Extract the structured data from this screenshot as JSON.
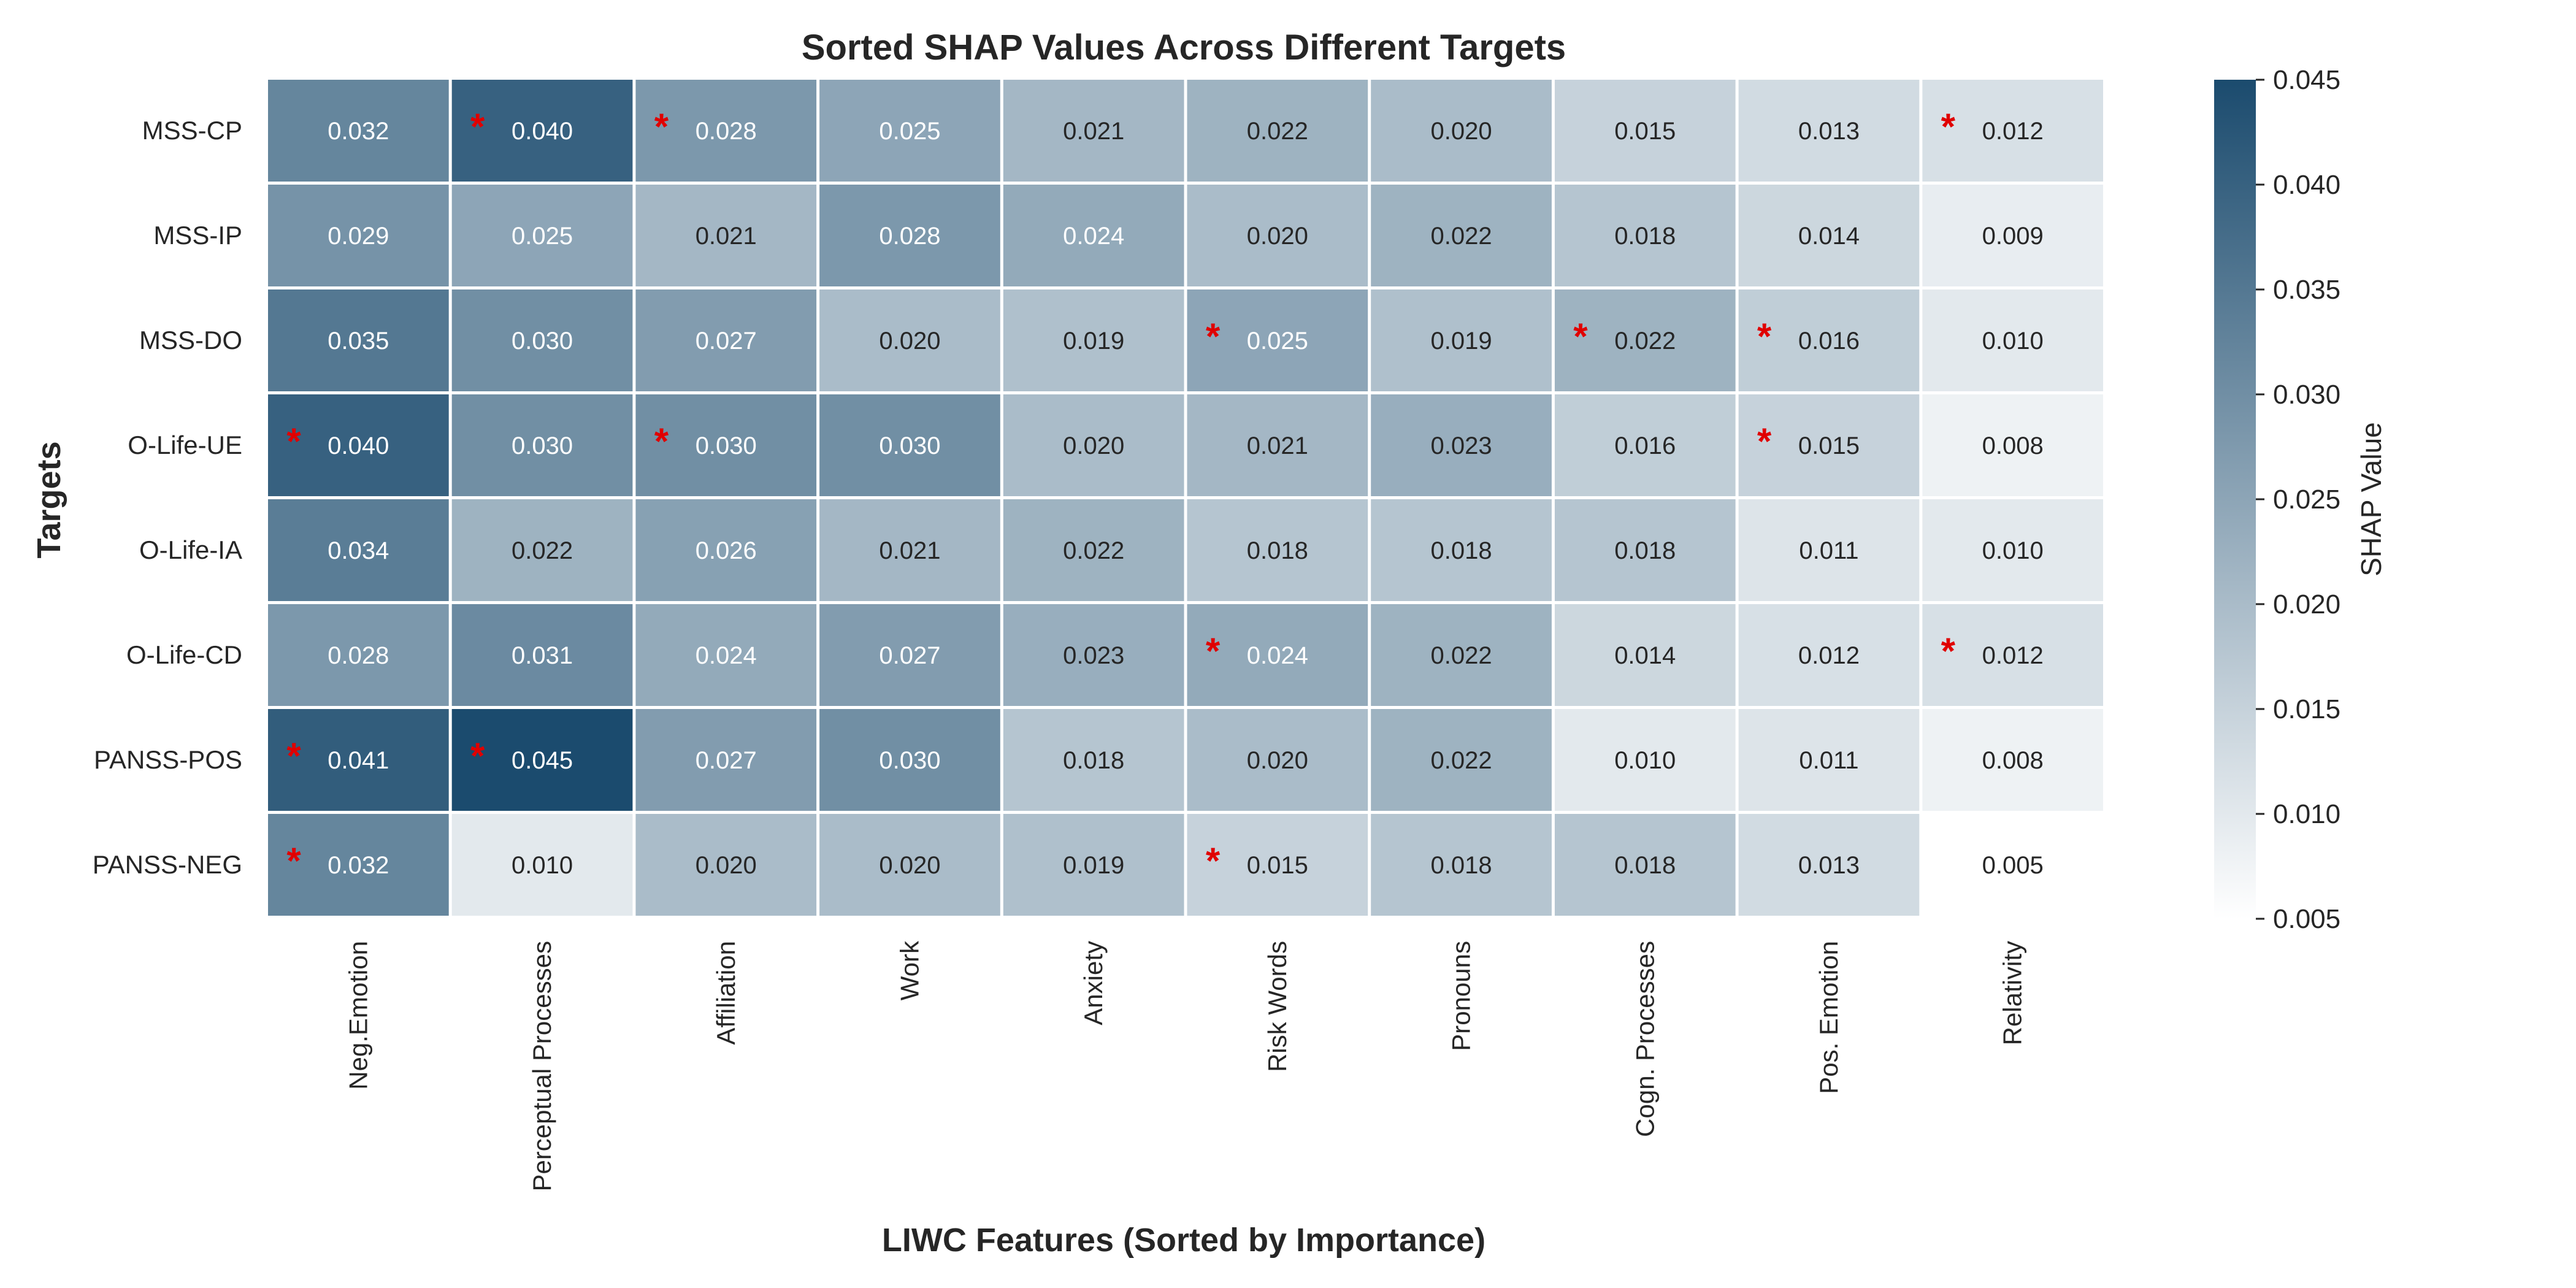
{
  "chart_data": {
    "type": "heatmap",
    "title": "Sorted SHAP Values Across Different Targets",
    "xlabel": "LIWC Features (Sorted by Importance)",
    "ylabel": "Targets",
    "x_categories": [
      "Neg.Emotion",
      "Perceptual Processes",
      "Affiliation",
      "Work",
      "Anxiety",
      "Risk Words",
      "Pronouns",
      "Cogn. Processes",
      "Pos. Emotion",
      "Relativity"
    ],
    "y_categories": [
      "MSS-CP",
      "MSS-IP",
      "MSS-DO",
      "O-Life-UE",
      "O-Life-IA",
      "O-Life-CD",
      "PANSS-POS",
      "PANSS-NEG"
    ],
    "values": [
      [
        0.032,
        0.04,
        0.028,
        0.025,
        0.021,
        0.022,
        0.02,
        0.015,
        0.013,
        0.012
      ],
      [
        0.029,
        0.025,
        0.021,
        0.028,
        0.024,
        0.02,
        0.022,
        0.018,
        0.014,
        0.009
      ],
      [
        0.035,
        0.03,
        0.027,
        0.02,
        0.019,
        0.025,
        0.019,
        0.022,
        0.016,
        0.01
      ],
      [
        0.04,
        0.03,
        0.03,
        0.03,
        0.02,
        0.021,
        0.023,
        0.016,
        0.015,
        0.008
      ],
      [
        0.034,
        0.022,
        0.026,
        0.021,
        0.022,
        0.018,
        0.018,
        0.018,
        0.011,
        0.01
      ],
      [
        0.028,
        0.031,
        0.024,
        0.027,
        0.023,
        0.024,
        0.022,
        0.014,
        0.012,
        0.012
      ],
      [
        0.041,
        0.045,
        0.027,
        0.03,
        0.018,
        0.02,
        0.022,
        0.01,
        0.011,
        0.008
      ],
      [
        0.032,
        0.01,
        0.02,
        0.02,
        0.019,
        0.015,
        0.018,
        0.018,
        0.013,
        0.005
      ]
    ],
    "value_format": "{:.3f}",
    "significance_marker": "*",
    "significant": [
      [
        0,
        1
      ],
      [
        0,
        2
      ],
      [
        0,
        9
      ],
      [
        2,
        5
      ],
      [
        2,
        7
      ],
      [
        2,
        8
      ],
      [
        3,
        0
      ],
      [
        3,
        2
      ],
      [
        3,
        8
      ],
      [
        5,
        5
      ],
      [
        5,
        9
      ],
      [
        6,
        0
      ],
      [
        6,
        1
      ],
      [
        7,
        0
      ],
      [
        7,
        5
      ]
    ],
    "colorbar": {
      "label": "SHAP Value",
      "vmin": 0.005,
      "vmax": 0.045,
      "ticks": [
        "0.005",
        "0.010",
        "0.015",
        "0.020",
        "0.025",
        "0.030",
        "0.035",
        "0.040",
        "0.045"
      ],
      "color_low": "#ffffff",
      "color_high": "#1b4b6e"
    },
    "grid": false
  }
}
